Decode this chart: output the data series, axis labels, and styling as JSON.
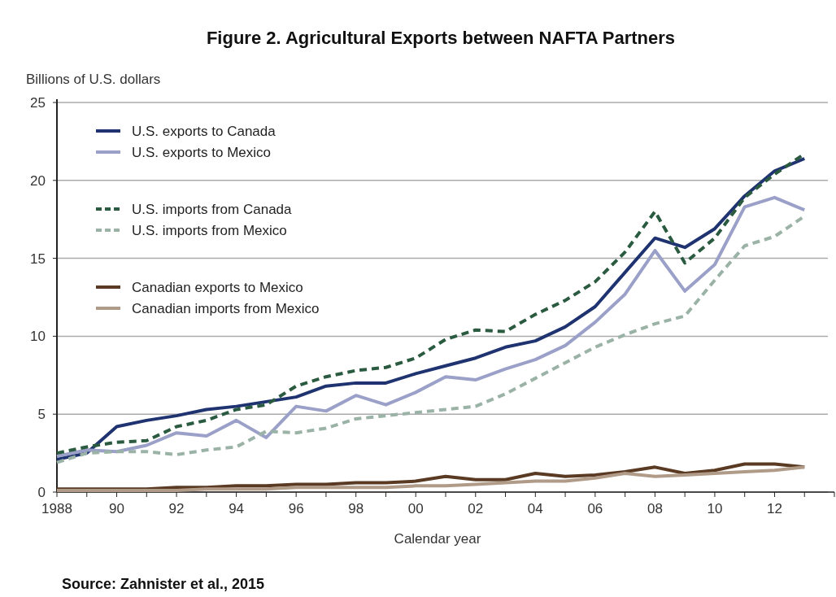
{
  "chart_data": {
    "type": "line",
    "title": "Figure 2. Agricultural Exports between NAFTA Partners",
    "ylabel": "Billions of U.S. dollars",
    "xlabel": "Calendar year",
    "x": [
      1988,
      1989,
      1990,
      1991,
      1992,
      1993,
      1994,
      1995,
      1996,
      1997,
      1998,
      1999,
      2000,
      2001,
      2002,
      2003,
      2004,
      2005,
      2006,
      2007,
      2008,
      2009,
      2010,
      2011,
      2012,
      2013
    ],
    "series": [
      {
        "name": "U.S. exports to Canada",
        "color": "#1f3370",
        "line_style": "solid",
        "values": [
          2.1,
          2.5,
          4.2,
          4.6,
          4.9,
          5.3,
          5.5,
          5.8,
          6.1,
          6.8,
          7.0,
          7.0,
          7.6,
          8.1,
          8.6,
          9.3,
          9.7,
          10.6,
          11.9,
          14.1,
          16.3,
          15.7,
          16.9,
          19.0,
          20.6,
          21.4
        ]
      },
      {
        "name": "U.S. exports to Mexico",
        "color": "#9aa0c8",
        "line_style": "solid",
        "values": [
          2.3,
          2.7,
          2.6,
          3.0,
          3.8,
          3.6,
          4.6,
          3.5,
          5.5,
          5.2,
          6.2,
          5.6,
          6.4,
          7.4,
          7.2,
          7.9,
          8.5,
          9.4,
          10.9,
          12.7,
          15.5,
          12.9,
          14.6,
          18.3,
          18.9,
          18.1
        ]
      },
      {
        "name": "U.S. imports from Canada",
        "color": "#2a5a3f",
        "line_style": "dashed",
        "values": [
          2.5,
          2.9,
          3.2,
          3.3,
          4.2,
          4.6,
          5.3,
          5.6,
          6.8,
          7.4,
          7.8,
          8.0,
          8.6,
          9.8,
          10.4,
          10.3,
          11.4,
          12.3,
          13.5,
          15.4,
          18.0,
          14.7,
          16.3,
          18.9,
          20.4,
          21.7
        ]
      },
      {
        "name": "U.S. imports from Mexico",
        "color": "#9ab3a6",
        "line_style": "dashed",
        "values": [
          1.9,
          2.5,
          2.6,
          2.6,
          2.4,
          2.7,
          2.9,
          3.9,
          3.8,
          4.1,
          4.7,
          4.9,
          5.1,
          5.3,
          5.5,
          6.3,
          7.3,
          8.3,
          9.3,
          10.1,
          10.8,
          11.3,
          13.6,
          15.8,
          16.4,
          17.7
        ]
      },
      {
        "name": "Canadian exports to Mexico",
        "color": "#5a3a22",
        "line_style": "solid",
        "values": [
          0.2,
          0.2,
          0.2,
          0.2,
          0.3,
          0.3,
          0.4,
          0.4,
          0.5,
          0.5,
          0.6,
          0.6,
          0.7,
          1.0,
          0.8,
          0.8,
          1.2,
          1.0,
          1.1,
          1.3,
          1.6,
          1.2,
          1.4,
          1.8,
          1.8,
          1.6
        ]
      },
      {
        "name": "Canadian imports from Mexico",
        "color": "#b09a88",
        "line_style": "solid",
        "values": [
          0.1,
          0.1,
          0.1,
          0.1,
          0.1,
          0.2,
          0.2,
          0.2,
          0.3,
          0.3,
          0.3,
          0.3,
          0.4,
          0.4,
          0.5,
          0.6,
          0.7,
          0.7,
          0.9,
          1.2,
          1.0,
          1.1,
          1.2,
          1.3,
          1.4,
          1.6
        ]
      }
    ],
    "xlim": [
      1988,
      2014
    ],
    "xticks": [
      {
        "value": 1988,
        "label": "1988"
      },
      {
        "value": 1989,
        "label": null
      },
      {
        "value": 1990,
        "label": "90"
      },
      {
        "value": 1991,
        "label": null
      },
      {
        "value": 1992,
        "label": "92"
      },
      {
        "value": 1993,
        "label": null
      },
      {
        "value": 1994,
        "label": "94"
      },
      {
        "value": 1995,
        "label": null
      },
      {
        "value": 1996,
        "label": "96"
      },
      {
        "value": 1997,
        "label": null
      },
      {
        "value": 1998,
        "label": "98"
      },
      {
        "value": 1999,
        "label": null
      },
      {
        "value": 2000,
        "label": "00"
      },
      {
        "value": 2001,
        "label": null
      },
      {
        "value": 2002,
        "label": "02"
      },
      {
        "value": 2003,
        "label": null
      },
      {
        "value": 2004,
        "label": "04"
      },
      {
        "value": 2005,
        "label": null
      },
      {
        "value": 2006,
        "label": "06"
      },
      {
        "value": 2007,
        "label": null
      },
      {
        "value": 2008,
        "label": "08"
      },
      {
        "value": 2009,
        "label": null
      },
      {
        "value": 2010,
        "label": "10"
      },
      {
        "value": 2011,
        "label": null
      },
      {
        "value": 2012,
        "label": "12"
      },
      {
        "value": 2013,
        "label": null
      },
      {
        "value": 2014,
        "label": null
      }
    ],
    "ylim": [
      0,
      25
    ],
    "yticks": [
      0,
      5,
      10,
      15,
      20,
      25
    ],
    "grid": "y",
    "legend": "top left",
    "marker": "none",
    "annotations": [
      "Source: Zahnister et al., 2015"
    ]
  }
}
